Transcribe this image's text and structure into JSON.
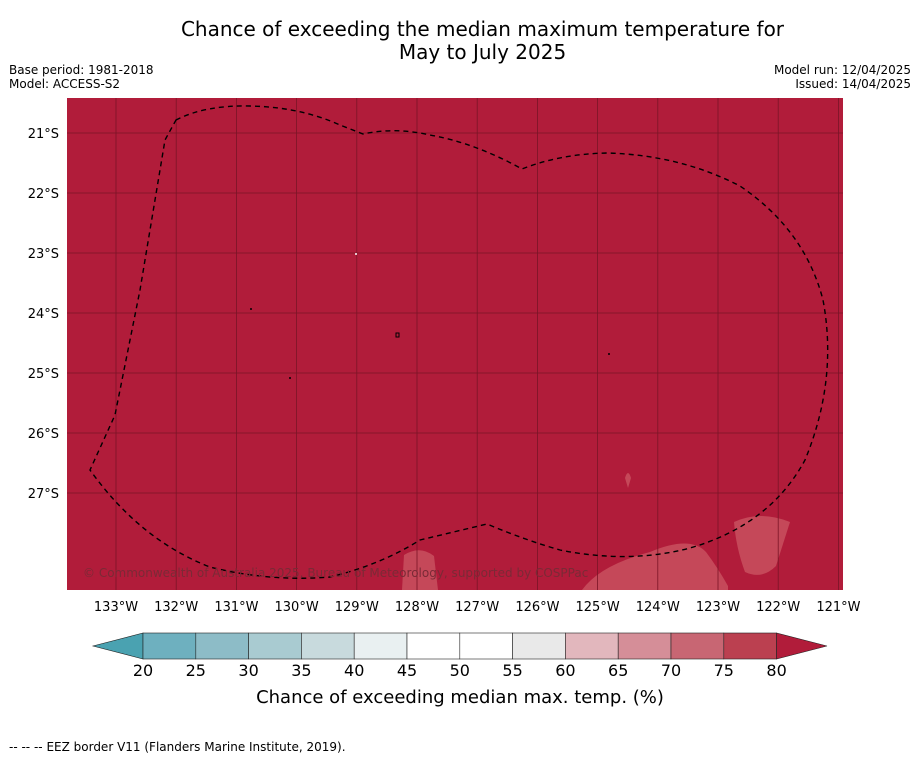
{
  "header": {
    "title_line1": "Chance of exceeding the median maximum temperature for",
    "title_line2": "May to July 2025",
    "base_period": "Base period: 1981-2018",
    "model": "Model: ACCESS-S2",
    "model_run": "Model run: 12/04/2025",
    "issued": "Issued: 14/04/2025"
  },
  "map": {
    "fill_color": "#b11c3a",
    "gridline_color": "#7a1426",
    "patch_color": "#c9505f",
    "lat_labels": [
      "21°S",
      "22°S",
      "23°S",
      "24°S",
      "25°S",
      "26°S",
      "27°S"
    ],
    "lon_labels": [
      "133°W",
      "132°W",
      "131°W",
      "130°W",
      "129°W",
      "128°W",
      "127°W",
      "126°W",
      "125°W",
      "124°W",
      "123°W",
      "122°W",
      "121°W"
    ],
    "copyright": "© Commonwealth of Australia 2025, Bureau of Meteorology, supported by COSPPac"
  },
  "colorbar": {
    "ticks": [
      "20",
      "25",
      "30",
      "35",
      "40",
      "45",
      "50",
      "55",
      "60",
      "65",
      "70",
      "75",
      "80"
    ],
    "colors": [
      "#6eb0bf",
      "#8dbcc7",
      "#a9cbd1",
      "#c8dadd",
      "#e9f0f1",
      "#ffffff",
      "#ffffff",
      "#e9e9e9",
      "#e2b7bd",
      "#d58e98",
      "#c86673",
      "#bb4050"
    ],
    "low_color": "#4aa2b1",
    "high_color": "#b11c3a",
    "label": "Chance of exceeding median max. temp. (%)"
  },
  "footer": {
    "legend_symbol": "-- -- --",
    "legend_text": "EEZ border V11 (Flanders Marine Institute, 2019)."
  }
}
